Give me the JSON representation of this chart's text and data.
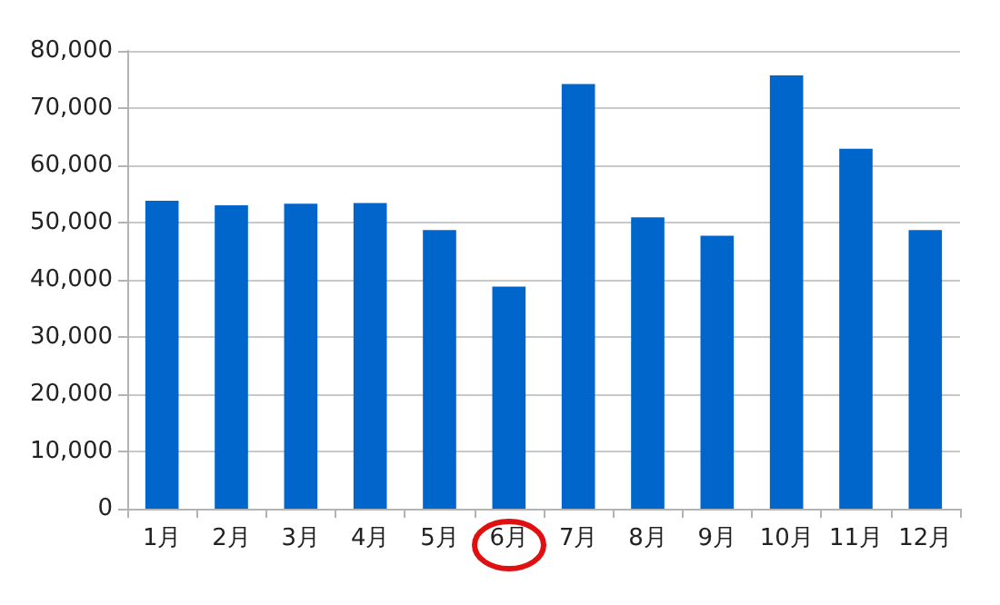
{
  "chart_data": {
    "type": "bar",
    "categories": [
      "1月",
      "2月",
      "3月",
      "4月",
      "5月",
      "6月",
      "7月",
      "8月",
      "9月",
      "10月",
      "11月",
      "12月"
    ],
    "values": [
      53800,
      53000,
      53300,
      53400,
      48700,
      38800,
      74200,
      50900,
      47700,
      75700,
      62900,
      48700
    ],
    "color": "#0066cc",
    "ylim": [
      0,
      80000
    ],
    "yticks": [
      0,
      {
        "value": 10000,
        "label": "10,000"
      },
      {
        "value": 20000,
        "label": "20,000"
      },
      {
        "value": 30000,
        "label": "30,000"
      },
      {
        "value": 40000,
        "label": "40,000"
      },
      {
        "value": 50000,
        "label": "50,000"
      },
      {
        "value": 60000,
        "label": "60,000"
      },
      {
        "value": 70000,
        "label": "70,000"
      },
      {
        "value": 80000,
        "label": "80,000"
      }
    ],
    "grid": "y"
  }
}
